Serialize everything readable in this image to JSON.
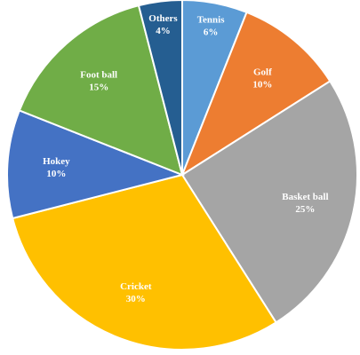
{
  "chart_data": {
    "type": "pie",
    "title": "",
    "slices": [
      {
        "label": "Tennis",
        "value": 6,
        "value_text": "6%",
        "color": "#5B9BD5"
      },
      {
        "label": "Golf",
        "value": 10,
        "value_text": "10%",
        "color": "#ED7D31"
      },
      {
        "label": "Basket ball",
        "value": 25,
        "value_text": "25%",
        "color": "#A5A5A5"
      },
      {
        "label": "Cricket",
        "value": 30,
        "value_text": "30%",
        "color": "#FFC000"
      },
      {
        "label": "Hokey",
        "value": 10,
        "value_text": "10%",
        "color": "#4472C4"
      },
      {
        "label": "Foot ball",
        "value": 15,
        "value_text": "15%",
        "color": "#70AD47"
      },
      {
        "label": "Others",
        "value": 4,
        "value_text": "4%",
        "color": "#255E91"
      }
    ],
    "start_angle_deg": 0,
    "direction": "clockwise",
    "legend": "none",
    "data_labels": "inside"
  }
}
